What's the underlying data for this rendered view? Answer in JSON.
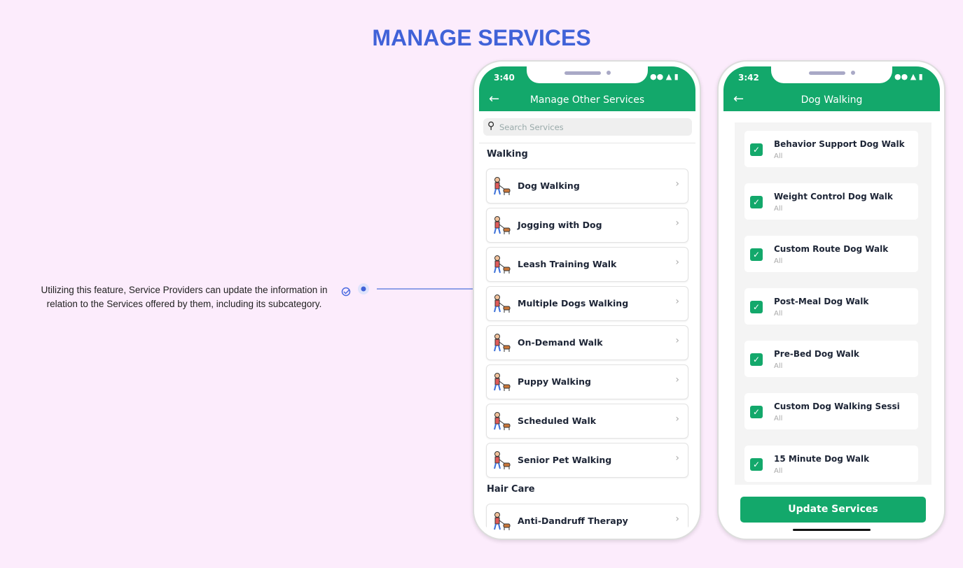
{
  "title": "MANAGE SERVICES",
  "annotation": "Utilizing this feature, Service Providers can update the information in relation to the Services offered by them, including its subcategory.",
  "phone1": {
    "time": "3:40",
    "header": "Manage Other Services",
    "search_placeholder": "Search Services",
    "sections": [
      {
        "title": "Walking",
        "items": [
          "Dog Walking",
          "Jogging with Dog",
          "Leash Training Walk",
          "Multiple Dogs Walking",
          "On-Demand Walk",
          "Puppy Walking",
          "Scheduled Walk",
          "Senior Pet Walking"
        ]
      },
      {
        "title": "Hair Care",
        "items": [
          "Anti-Dandruff Therapy"
        ]
      }
    ]
  },
  "phone2": {
    "time": "3:42",
    "header": "Dog Walking",
    "items": [
      {
        "name": "Behavior Support Dog Walk",
        "sub": "All"
      },
      {
        "name": "Weight Control Dog Walk",
        "sub": "All"
      },
      {
        "name": "Custom Route Dog Walk",
        "sub": "All"
      },
      {
        "name": "Post-Meal Dog Walk",
        "sub": "All"
      },
      {
        "name": "Pre-Bed Dog Walk",
        "sub": "All"
      },
      {
        "name": "Custom Dog Walking Sessi",
        "sub": "All"
      },
      {
        "name": "15 Minute Dog Walk",
        "sub": "All"
      }
    ],
    "button": "Update Services"
  }
}
